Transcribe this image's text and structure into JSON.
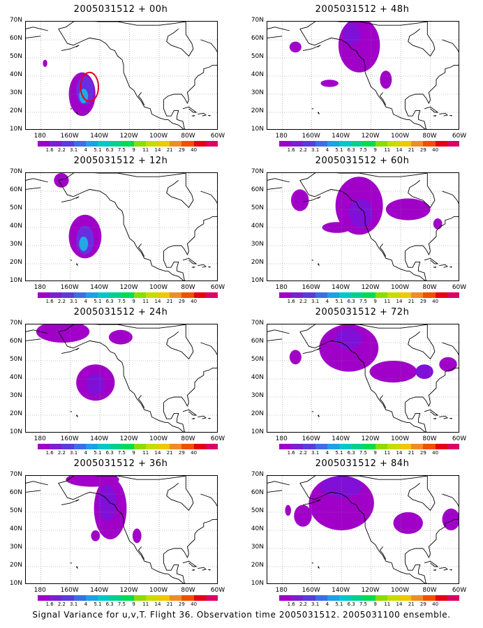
{
  "panels": [
    {
      "title": "2005031512 + 00h",
      "blobs": [
        {
          "lon": -152,
          "lat": 30,
          "rlon": 9,
          "rlat": 12,
          "level": 1
        },
        {
          "lon": -150,
          "lat": 32,
          "rlon": 6,
          "rlat": 8,
          "level": 3
        },
        {
          "lon": -151,
          "lat": 29,
          "rlon": 3,
          "rlat": 4,
          "level": 5
        },
        {
          "lon": -177,
          "lat": 47,
          "rlon": 1.5,
          "rlat": 2,
          "level": 1
        }
      ],
      "ring": {
        "lon": -147,
        "lat": 34,
        "rlon": 6,
        "rlat": 8
      }
    },
    {
      "title": "2005031512 + 12h",
      "blobs": [
        {
          "lon": -150,
          "lat": 35,
          "rlon": 11,
          "rlat": 12,
          "level": 1
        },
        {
          "lon": -150,
          "lat": 33,
          "rlon": 6,
          "rlat": 8,
          "level": 3
        },
        {
          "lon": -151,
          "lat": 31,
          "rlon": 3,
          "rlat": 4,
          "level": 5
        },
        {
          "lon": -166,
          "lat": 66,
          "rlon": 5,
          "rlat": 4,
          "level": 1
        }
      ]
    },
    {
      "title": "2005031512 + 24h",
      "blobs": [
        {
          "lon": -143,
          "lat": 38,
          "rlon": 13,
          "rlat": 10,
          "level": 1
        },
        {
          "lon": -143,
          "lat": 37,
          "rlon": 6,
          "rlat": 6,
          "level": 2
        },
        {
          "lon": -165,
          "lat": 66,
          "rlon": 18,
          "rlat": 6,
          "level": 1
        },
        {
          "lon": -126,
          "lat": 63,
          "rlon": 8,
          "rlat": 4,
          "level": 1
        }
      ]
    },
    {
      "title": "2005031512 + 36h",
      "blobs": [
        {
          "lon": -133,
          "lat": 52,
          "rlon": 11,
          "rlat": 17,
          "level": 1
        },
        {
          "lon": -135,
          "lat": 55,
          "rlon": 6,
          "rlat": 10,
          "level": 2
        },
        {
          "lon": -145,
          "lat": 68,
          "rlon": 18,
          "rlat": 4,
          "level": 1
        },
        {
          "lon": -143,
          "lat": 37,
          "rlon": 3,
          "rlat": 3,
          "level": 1
        },
        {
          "lon": -115,
          "lat": 37,
          "rlon": 3,
          "rlat": 4,
          "level": 1
        }
      ]
    },
    {
      "title": "2005031512 + 48h",
      "blobs": [
        {
          "lon": -128,
          "lat": 57,
          "rlon": 14,
          "rlat": 15,
          "level": 1
        },
        {
          "lon": -133,
          "lat": 63,
          "rlon": 6,
          "rlat": 6,
          "level": 2
        },
        {
          "lon": -110,
          "lat": 38,
          "rlon": 4,
          "rlat": 5,
          "level": 1
        },
        {
          "lon": -148,
          "lat": 36,
          "rlon": 6,
          "rlat": 2,
          "level": 1
        },
        {
          "lon": -171,
          "lat": 56,
          "rlon": 4,
          "rlat": 3,
          "level": 1
        }
      ]
    },
    {
      "title": "2005031512 + 60h",
      "blobs": [
        {
          "lon": -128,
          "lat": 52,
          "rlon": 16,
          "rlat": 16,
          "level": 1
        },
        {
          "lon": -127,
          "lat": 48,
          "rlon": 8,
          "rlat": 8,
          "level": 2
        },
        {
          "lon": -168,
          "lat": 55,
          "rlon": 6,
          "rlat": 6,
          "level": 1
        },
        {
          "lon": -143,
          "lat": 40,
          "rlon": 10,
          "rlat": 3,
          "level": 1
        },
        {
          "lon": -95,
          "lat": 50,
          "rlon": 15,
          "rlat": 6,
          "level": 1
        },
        {
          "lon": -75,
          "lat": 42,
          "rlon": 3,
          "rlat": 3,
          "level": 1
        }
      ]
    },
    {
      "title": "2005031512 + 72h",
      "blobs": [
        {
          "lon": -135,
          "lat": 57,
          "rlon": 20,
          "rlat": 13,
          "level": 1
        },
        {
          "lon": -135,
          "lat": 62,
          "rlon": 9,
          "rlat": 6,
          "level": 2
        },
        {
          "lon": -105,
          "lat": 44,
          "rlon": 16,
          "rlat": 6,
          "level": 1
        },
        {
          "lon": -84,
          "lat": 44,
          "rlon": 6,
          "rlat": 4,
          "level": 2
        },
        {
          "lon": -68,
          "lat": 48,
          "rlon": 6,
          "rlat": 4,
          "level": 1
        },
        {
          "lon": -171,
          "lat": 52,
          "rlon": 4,
          "rlat": 4,
          "level": 1
        }
      ]
    },
    {
      "title": "2005031512 + 84h",
      "blobs": [
        {
          "lon": -140,
          "lat": 55,
          "rlon": 22,
          "rlat": 15,
          "level": 1
        },
        {
          "lon": -140,
          "lat": 64,
          "rlon": 14,
          "rlat": 6,
          "level": 2
        },
        {
          "lon": -166,
          "lat": 48,
          "rlon": 6,
          "rlat": 6,
          "level": 1
        },
        {
          "lon": -95,
          "lat": 44,
          "rlon": 10,
          "rlat": 6,
          "level": 1
        },
        {
          "lon": -66,
          "lat": 46,
          "rlon": 6,
          "rlat": 6,
          "level": 1
        },
        {
          "lon": -176,
          "lat": 51,
          "rlon": 2,
          "rlat": 3,
          "level": 1
        }
      ]
    }
  ],
  "lon_ticks": [
    "180",
    "160W",
    "140W",
    "120W",
    "100W",
    "80W",
    "60W"
  ],
  "lat_ticks": [
    "70N",
    "60N",
    "50N",
    "40N",
    "30N",
    "20N",
    "10N"
  ],
  "colorbar": {
    "colors": [
      "#a000c8",
      "#7a20d2",
      "#5a3cdc",
      "#3c6ee6",
      "#1ea0e6",
      "#00c8c8",
      "#00d28c",
      "#00dc50",
      "#8cdc00",
      "#c8dc00",
      "#f0c800",
      "#f08c28",
      "#f05000",
      "#e60014",
      "#dc0064"
    ],
    "labels": [
      "1.6",
      "2.2",
      "3.1",
      "4",
      "5.1",
      "6.3",
      "7.5",
      "9",
      "11",
      "14",
      "21",
      "29",
      "40"
    ]
  },
  "shade_colors": [
    "#ffffff",
    "#a000c8",
    "#8010d8",
    "#6a2ee0",
    "#4a60e6",
    "#20a8e8",
    "#10c8d8"
  ],
  "caption": "Signal Variance for u,v,T. Flight 36. Observation time 2005031512. 2005031100 ensemble."
}
